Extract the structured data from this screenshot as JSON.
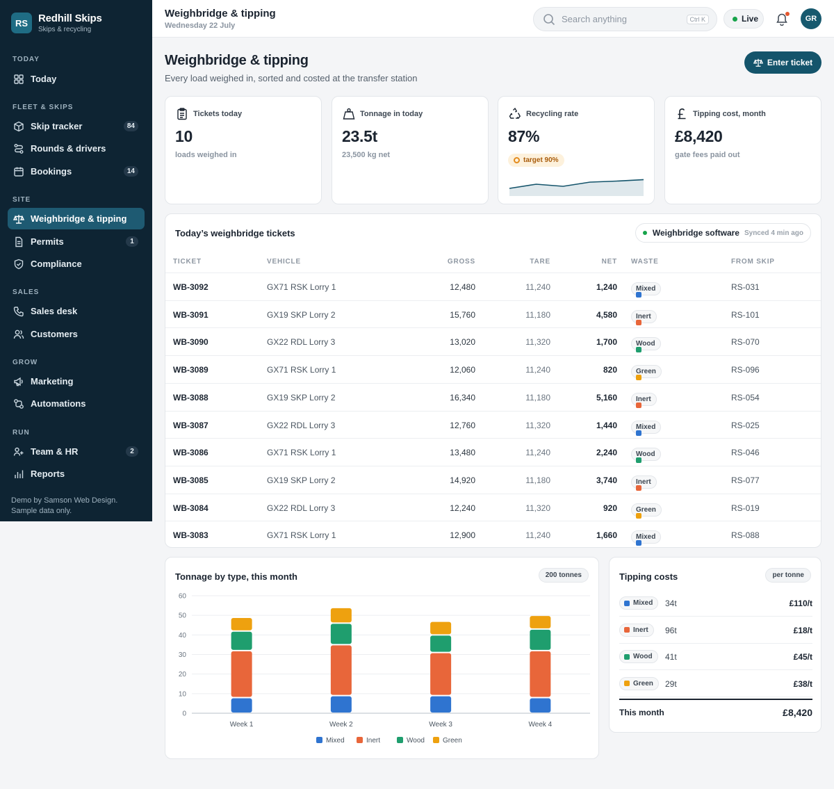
{
  "brand": {
    "initials": "RS",
    "name": "Redhill Skips",
    "sub": "Skips & recycling"
  },
  "nav": {
    "sections": [
      "TODAY",
      "FLEET & SKIPS",
      "SITE",
      "SALES",
      "GROW",
      "RUN"
    ],
    "items": [
      {
        "label": "Today",
        "icon": "grid-icon"
      },
      {
        "label": "Skip tracker",
        "icon": "cube-icon",
        "badge": "84"
      },
      {
        "label": "Rounds & drivers",
        "icon": "route-icon"
      },
      {
        "label": "Bookings",
        "icon": "calendar-icon",
        "badge": "14"
      },
      {
        "label": "Weighbridge & tipping",
        "icon": "scale-icon",
        "active": true
      },
      {
        "label": "Permits",
        "icon": "document-icon",
        "badge": "1"
      },
      {
        "label": "Compliance",
        "icon": "shield-icon"
      },
      {
        "label": "Sales desk",
        "icon": "phone-icon"
      },
      {
        "label": "Customers",
        "icon": "users-icon"
      },
      {
        "label": "Marketing",
        "icon": "megaphone-icon"
      },
      {
        "label": "Automations",
        "icon": "workflow-icon"
      },
      {
        "label": "Team & HR",
        "icon": "team-icon",
        "badge": "2"
      },
      {
        "label": "Reports",
        "icon": "bar-chart-icon"
      }
    ],
    "footer": "Demo by Samson Web Design. Sample data only."
  },
  "topbar": {
    "title": "Weighbridge & tipping",
    "date": "Wednesday 22 July",
    "search_placeholder": "Search anything",
    "shortcut": "Ctrl K",
    "live": "Live",
    "avatar": "GR"
  },
  "page": {
    "title": "Weighbridge & tipping",
    "subtitle": "Every load weighed in, sorted and costed at the transfer station",
    "action": "Enter ticket"
  },
  "kpis": [
    {
      "label": "Tickets today",
      "value": "10",
      "note": "loads weighed in",
      "icon": "clipboard-icon"
    },
    {
      "label": "Tonnage in today",
      "value": "23.5t",
      "note": "23,500 kg net",
      "icon": "weight-icon"
    },
    {
      "label": "Recycling rate",
      "value": "87%",
      "target": "target 90%",
      "icon": "recycle-icon",
      "trend": [
        0.3,
        0.5,
        0.4,
        0.6,
        0.65,
        0.72
      ]
    },
    {
      "label": "Tipping cost, month",
      "value": "£8,420",
      "note": "gate fees paid out",
      "icon": "pound-icon"
    }
  ],
  "tickets": {
    "title": "Today’s weighbridge tickets",
    "sync_label": "Weighbridge software",
    "sync_time": "Synced 4 min ago",
    "columns": [
      "TICKET",
      "VEHICLE",
      "GROSS",
      "TARE",
      "NET",
      "WASTE",
      "FROM SKIP"
    ],
    "rows": [
      {
        "ticket": "WB-3092",
        "vehicle": "GX71 RSK Lorry 1",
        "gross": "12,480",
        "tare": "11,240",
        "net": "1,240",
        "waste": "Mixed",
        "skip": "RS-031"
      },
      {
        "ticket": "WB-3091",
        "vehicle": "GX19 SKP Lorry 2",
        "gross": "15,760",
        "tare": "11,180",
        "net": "4,580",
        "waste": "Inert",
        "skip": "RS-101"
      },
      {
        "ticket": "WB-3090",
        "vehicle": "GX22 RDL Lorry 3",
        "gross": "13,020",
        "tare": "11,320",
        "net": "1,700",
        "waste": "Wood",
        "skip": "RS-070"
      },
      {
        "ticket": "WB-3089",
        "vehicle": "GX71 RSK Lorry 1",
        "gross": "12,060",
        "tare": "11,240",
        "net": "820",
        "waste": "Green",
        "skip": "RS-096"
      },
      {
        "ticket": "WB-3088",
        "vehicle": "GX19 SKP Lorry 2",
        "gross": "16,340",
        "tare": "11,180",
        "net": "5,160",
        "waste": "Inert",
        "skip": "RS-054"
      },
      {
        "ticket": "WB-3087",
        "vehicle": "GX22 RDL Lorry 3",
        "gross": "12,760",
        "tare": "11,320",
        "net": "1,440",
        "waste": "Mixed",
        "skip": "RS-025"
      },
      {
        "ticket": "WB-3086",
        "vehicle": "GX71 RSK Lorry 1",
        "gross": "13,480",
        "tare": "11,240",
        "net": "2,240",
        "waste": "Wood",
        "skip": "RS-046"
      },
      {
        "ticket": "WB-3085",
        "vehicle": "GX19 SKP Lorry 2",
        "gross": "14,920",
        "tare": "11,180",
        "net": "3,740",
        "waste": "Inert",
        "skip": "RS-077"
      },
      {
        "ticket": "WB-3084",
        "vehicle": "GX22 RDL Lorry 3",
        "gross": "12,240",
        "tare": "11,320",
        "net": "920",
        "waste": "Green",
        "skip": "RS-019"
      },
      {
        "ticket": "WB-3083",
        "vehicle": "GX71 RSK Lorry 1",
        "gross": "12,900",
        "tare": "11,240",
        "net": "1,660",
        "waste": "Mixed",
        "skip": "RS-088"
      }
    ]
  },
  "waste_colors": {
    "Mixed": "#2f74d0",
    "Inert": "#e8663a",
    "Wood": "#1f9e6e",
    "Green": "#eea10f"
  },
  "chart_title": "Tonnage by type, this month",
  "chart_badge": "200 tonnes",
  "chart_data": {
    "type": "bar",
    "stacked": true,
    "categories": [
      "Week 1",
      "Week 2",
      "Week 3",
      "Week 4"
    ],
    "series": [
      {
        "name": "Mixed",
        "color": "#2f74d0",
        "values": [
          8,
          9,
          9,
          8
        ]
      },
      {
        "name": "Inert",
        "color": "#e8663a",
        "values": [
          24,
          26,
          22,
          24
        ]
      },
      {
        "name": "Wood",
        "color": "#1f9e6e",
        "values": [
          10,
          11,
          9,
          11
        ]
      },
      {
        "name": "Green",
        "color": "#eea10f",
        "values": [
          7,
          8,
          7,
          7
        ]
      }
    ],
    "ylim": [
      0,
      60
    ],
    "yticks": [
      0,
      10,
      20,
      30,
      40,
      50,
      60
    ],
    "grid": true,
    "legend": "bottom"
  },
  "costs": {
    "title": "Tipping costs",
    "badge": "per tonne",
    "rows": [
      {
        "waste": "Mixed",
        "tonnes": "34t",
        "rate": "£110/t"
      },
      {
        "waste": "Inert",
        "tonnes": "96t",
        "rate": "£18/t"
      },
      {
        "waste": "Wood",
        "tonnes": "41t",
        "rate": "£45/t"
      },
      {
        "waste": "Green",
        "tonnes": "29t",
        "rate": "£38/t"
      }
    ],
    "total_label": "This month",
    "total_value": "£8,420"
  }
}
